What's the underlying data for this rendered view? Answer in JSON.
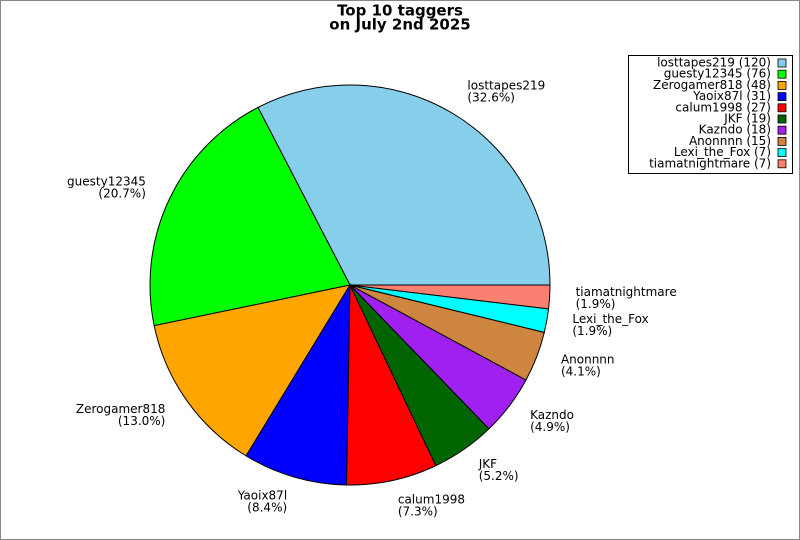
{
  "chart_data": {
    "type": "pie",
    "title": "Top 10 taggers",
    "subtitle": "on July 2nd 2025",
    "categories": [
      "losttapes219",
      "guesty12345",
      "Zerogamer818",
      "Yaoix87l",
      "calum1998",
      "JKF",
      "Kazndo",
      "Anonnnn",
      "Lexi_the_Fox",
      "tiamatnightmare"
    ],
    "values": [
      120,
      76,
      48,
      31,
      27,
      19,
      18,
      15,
      7,
      7
    ],
    "percent_labels": [
      "(32.6%)",
      "(20.7%)",
      "(13.0%)",
      "(8.4%)",
      "(7.3%)",
      "(5.2%)",
      "(4.9%)",
      "(4.1%)",
      "(1.9%)",
      "(1.9%)"
    ],
    "legend_labels": [
      "losttapes219 (120)",
      "guesty12345 (76)",
      "Zerogamer818 (48)",
      "Yaoix87l (31)",
      "calum1998 (27)",
      "JKF (19)",
      "Kazndo (18)",
      "Anonnnn (15)",
      "Lexi_the_Fox (7)",
      "tiamatnightmare (7)"
    ],
    "colors": [
      "#87ceeb",
      "#00ff00",
      "#ffa500",
      "#0000ff",
      "#ff0000",
      "#006400",
      "#a020f0",
      "#cd853f",
      "#00ffff",
      "#fa8072"
    ],
    "legend_position": "upper right"
  }
}
